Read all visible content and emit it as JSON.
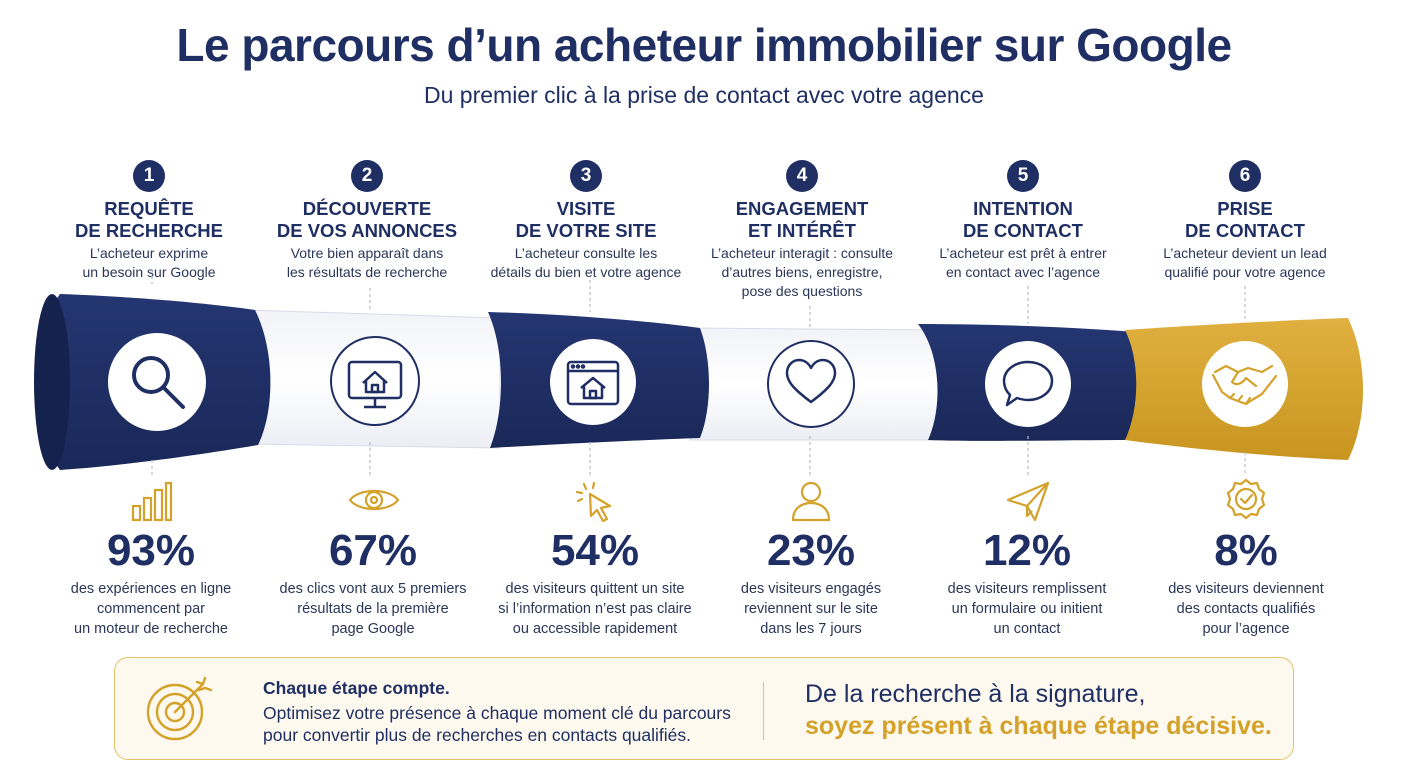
{
  "title": "Le parcours d’un acheteur immobilier sur Google",
  "subtitle": "Du premier clic à la prise de contact avec votre agence",
  "colors": {
    "navy": "#1f2f63",
    "gold": "#d4a12a",
    "white_band": "#ffffff"
  },
  "steps": [
    {
      "num": "1",
      "title": "REQUÊTE\nDE RECHERCHE",
      "desc": "L’acheteur exprime\nun besoin sur Google",
      "icon": "magnifier-icon",
      "band_color": "navy"
    },
    {
      "num": "2",
      "title": "DÉCOUVERTE\nDE VOS ANNONCES",
      "desc": "Votre bien apparaît dans\nles résultats de recherche",
      "icon": "monitor-house-icon",
      "band_color": "white"
    },
    {
      "num": "3",
      "title": "VISITE\nDE VOTRE SITE",
      "desc": "L’acheteur consulte les\ndétails du bien et votre agence",
      "icon": "browser-house-icon",
      "band_color": "navy"
    },
    {
      "num": "4",
      "title": "ENGAGEMENT\nET INTÉRÊT",
      "desc": "L’acheteur interagit : consulte\nd’autres biens, enregistre,\npose des questions",
      "icon": "heart-icon",
      "band_color": "white"
    },
    {
      "num": "5",
      "title": "INTENTION\nDE CONTACT",
      "desc": "L’acheteur est prêt à entrer\nen contact avec l’agence",
      "icon": "speech-bubble-icon",
      "band_color": "navy"
    },
    {
      "num": "6",
      "title": "PRISE\nDE CONTACT",
      "desc": "L’acheteur devient un lead\nqualifié pour votre agence",
      "icon": "handshake-icon",
      "band_color": "gold"
    }
  ],
  "metrics": [
    {
      "value": "93%",
      "desc": "des expériences en ligne\ncommencent par\nun moteur de recherche",
      "icon": "bar-chart-icon"
    },
    {
      "value": "67%",
      "desc": "des clics vont aux 5 premiers\nrésultats de la première\npage Google",
      "icon": "eye-icon"
    },
    {
      "value": "54%",
      "desc": "des visiteurs quittent un site\nsi l’information n’est pas claire\nou accessible rapidement",
      "icon": "cursor-click-icon"
    },
    {
      "value": "23%",
      "desc": "des visiteurs engagés\nreviennent sur le site\ndans les 7 jours",
      "icon": "user-icon"
    },
    {
      "value": "12%",
      "desc": "des visiteurs remplissent\nun formulaire ou initient\nun contact",
      "icon": "paper-plane-icon"
    },
    {
      "value": "8%",
      "desc": "des visiteurs deviennent\ndes contacts qualifiés\npour l’agence",
      "icon": "badge-check-icon"
    }
  ],
  "footer": {
    "left_title": "Chaque étape compte.",
    "left_text": "Optimisez votre présence à chaque moment clé du parcours\npour convertir plus de recherches en contacts qualifiés.",
    "right_line1": "De la recherche à la signature,",
    "right_line2": "soyez présent à chaque étape décisive.",
    "icon": "target-icon"
  }
}
